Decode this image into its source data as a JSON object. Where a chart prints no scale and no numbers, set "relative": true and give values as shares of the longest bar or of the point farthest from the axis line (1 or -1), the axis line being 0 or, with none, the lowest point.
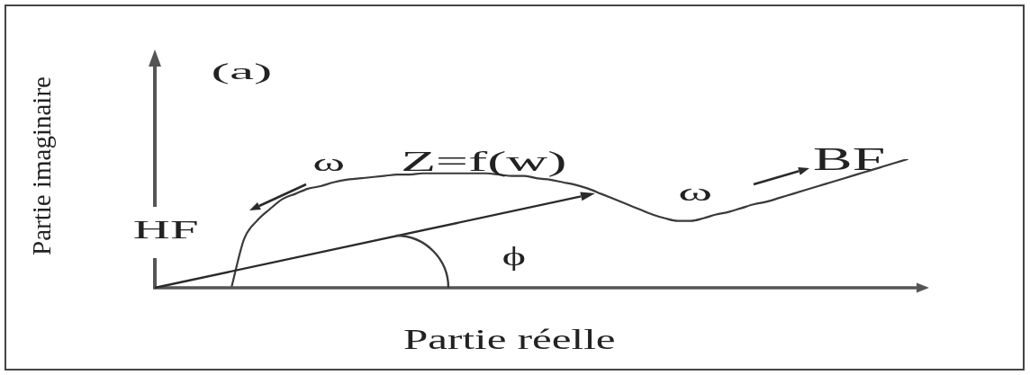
{
  "chart_data": {
    "type": "line",
    "relative": true,
    "xlabel": "Partie réelle",
    "ylabel": "Partie imaginaire",
    "annotations": [
      "(a)",
      "ω",
      "Z=f(w)",
      "ω",
      "BF",
      "HF",
      "ϕ"
    ],
    "categories": [
      null,
      null,
      null,
      null,
      null,
      null,
      null,
      null,
      null,
      null,
      null,
      null,
      null,
      null,
      null,
      null,
      null,
      null,
      null,
      null,
      null,
      null,
      null,
      null,
      null,
      null,
      null,
      null,
      null,
      null,
      null,
      null,
      null,
      null,
      null,
      null,
      null,
      null,
      null,
      null,
      null,
      null,
      null,
      null,
      null,
      null,
      null,
      null,
      null,
      null,
      null,
      null,
      null,
      null,
      null,
      null,
      null,
      null,
      null,
      null,
      null
    ],
    "series": [
      {
        "color": "#3a3a3a",
        "values": [
          null,
          null,
          null,
          null,
          null,
          null,
          0,
          0.38,
          0.52,
          0.61,
          0.69,
          0.73,
          0.77,
          0.79,
          0.82,
          0.84,
          0.85,
          0.86,
          0.87,
          0.88,
          0.88,
          0.89,
          0.89,
          0.89,
          0.89,
          0.89,
          0.89,
          0.88,
          0.87,
          0.87,
          0.85,
          0.84,
          0.82,
          0.8,
          0.77,
          0.73,
          0.69,
          0.65,
          0.61,
          0.57,
          0.54,
          0.52,
          0.52,
          0.54,
          0.57,
          0.59,
          0.62,
          0.65,
          0.67,
          0.7,
          0.73,
          0.76,
          0.79,
          0.82,
          0.85,
          0.88,
          0.91,
          0.94,
          0.97,
          1,
          null
        ]
      }
    ]
  }
}
